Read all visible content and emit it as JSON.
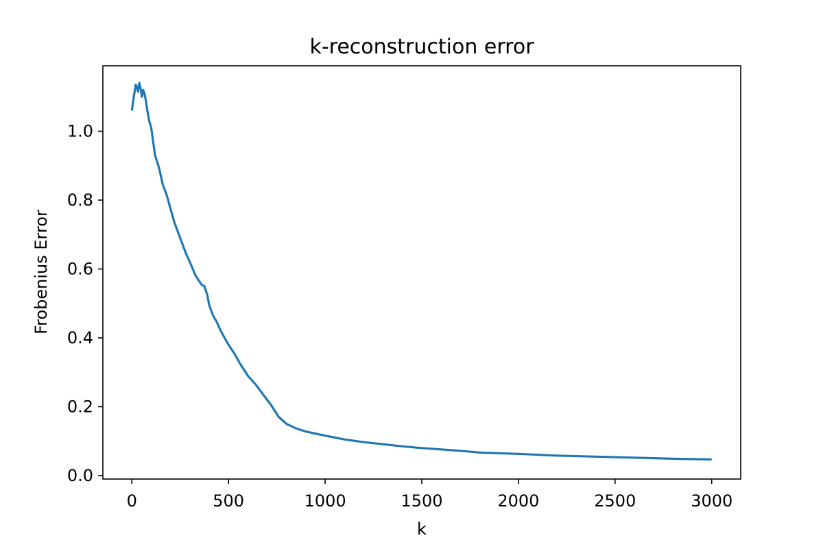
{
  "chart_data": {
    "type": "line",
    "title": "k-reconstruction error",
    "xlabel": "k",
    "ylabel": "Frobenius Error",
    "xlim": [
      -150,
      3150
    ],
    "ylim": [
      -0.01,
      1.19
    ],
    "x_ticks": [
      0,
      500,
      1000,
      1500,
      2000,
      2500,
      3000
    ],
    "x_tick_labels": [
      "0",
      "500",
      "1000",
      "1500",
      "2000",
      "2500",
      "3000"
    ],
    "y_ticks": [
      0.0,
      0.2,
      0.4,
      0.6,
      0.8,
      1.0
    ],
    "y_tick_labels": [
      "0.0",
      "0.2",
      "0.4",
      "0.6",
      "0.8",
      "1.0"
    ],
    "grid": false,
    "legend": "none",
    "colors": {
      "line": "#1f77b4",
      "axes": "#000000",
      "background": "#ffffff"
    },
    "series": [
      {
        "x": [
          0,
          10,
          20,
          25,
          32,
          38,
          45,
          52,
          58,
          65,
          72,
          80,
          90,
          100,
          120,
          140,
          160,
          180,
          200,
          220,
          240,
          260,
          280,
          300,
          330,
          360,
          375,
          390,
          400,
          420,
          440,
          460,
          480,
          500,
          530,
          560,
          600,
          640,
          680,
          720,
          760,
          800,
          850,
          900,
          950,
          1000,
          1100,
          1200,
          1300,
          1400,
          1500,
          1600,
          1700,
          1800,
          2000,
          2200,
          2400,
          2600,
          2800,
          3000
        ],
        "y": [
          1.06,
          1.1,
          1.135,
          1.13,
          1.115,
          1.14,
          1.125,
          1.1,
          1.12,
          1.11,
          1.09,
          1.06,
          1.03,
          1.01,
          0.93,
          0.895,
          0.845,
          0.815,
          0.775,
          0.735,
          0.705,
          0.675,
          0.645,
          0.62,
          0.58,
          0.555,
          0.55,
          0.525,
          0.495,
          0.465,
          0.445,
          0.42,
          0.4,
          0.38,
          0.355,
          0.325,
          0.29,
          0.265,
          0.235,
          0.205,
          0.17,
          0.15,
          0.137,
          0.128,
          0.122,
          0.116,
          0.105,
          0.097,
          0.091,
          0.085,
          0.08,
          0.076,
          0.072,
          0.067,
          0.063,
          0.058,
          0.055,
          0.052,
          0.049,
          0.047
        ]
      }
    ]
  }
}
